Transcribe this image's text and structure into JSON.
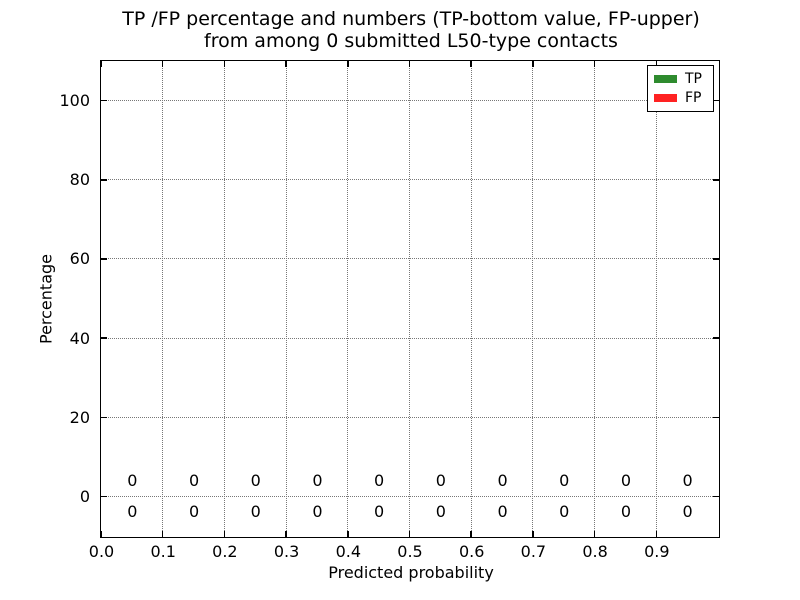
{
  "chart_data": {
    "type": "bar",
    "title": "TP /FP percentage and numbers (TP-bottom value, FP-upper)\nfrom among 0 submitted L50-type contacts",
    "xlabel": "Predicted probability",
    "ylabel": "Percentage",
    "xlim": [
      0.0,
      1.0
    ],
    "ylim": [
      -10,
      110
    ],
    "x_tick_values": [
      0.0,
      0.1,
      0.2,
      0.3,
      0.4,
      0.5,
      0.6,
      0.7,
      0.8,
      0.9
    ],
    "x_tick_labels": [
      "0.0",
      "0.1",
      "0.2",
      "0.3",
      "0.4",
      "0.5",
      "0.6",
      "0.7",
      "0.8",
      "0.9"
    ],
    "y_tick_values": [
      0,
      20,
      40,
      60,
      80,
      100
    ],
    "y_tick_labels": [
      "0",
      "20",
      "40",
      "60",
      "80",
      "100"
    ],
    "grid": "dotted",
    "bin_centers": [
      0.05,
      0.15,
      0.25,
      0.35,
      0.45,
      0.55,
      0.65,
      0.75,
      0.85,
      0.95
    ],
    "series": [
      {
        "name": "TP",
        "color": "#2e8b2e",
        "values": [
          0,
          0,
          0,
          0,
          0,
          0,
          0,
          0,
          0,
          0
        ],
        "label_row": "below-zero-line"
      },
      {
        "name": "FP",
        "color": "#ff2222",
        "values": [
          0,
          0,
          0,
          0,
          0,
          0,
          0,
          0,
          0,
          0
        ],
        "label_row": "above-zero-line"
      }
    ],
    "legend": {
      "position": "upper-right",
      "entries": [
        {
          "label": "TP",
          "color": "#2e8b2e"
        },
        {
          "label": "FP",
          "color": "#ff2222"
        }
      ]
    }
  }
}
